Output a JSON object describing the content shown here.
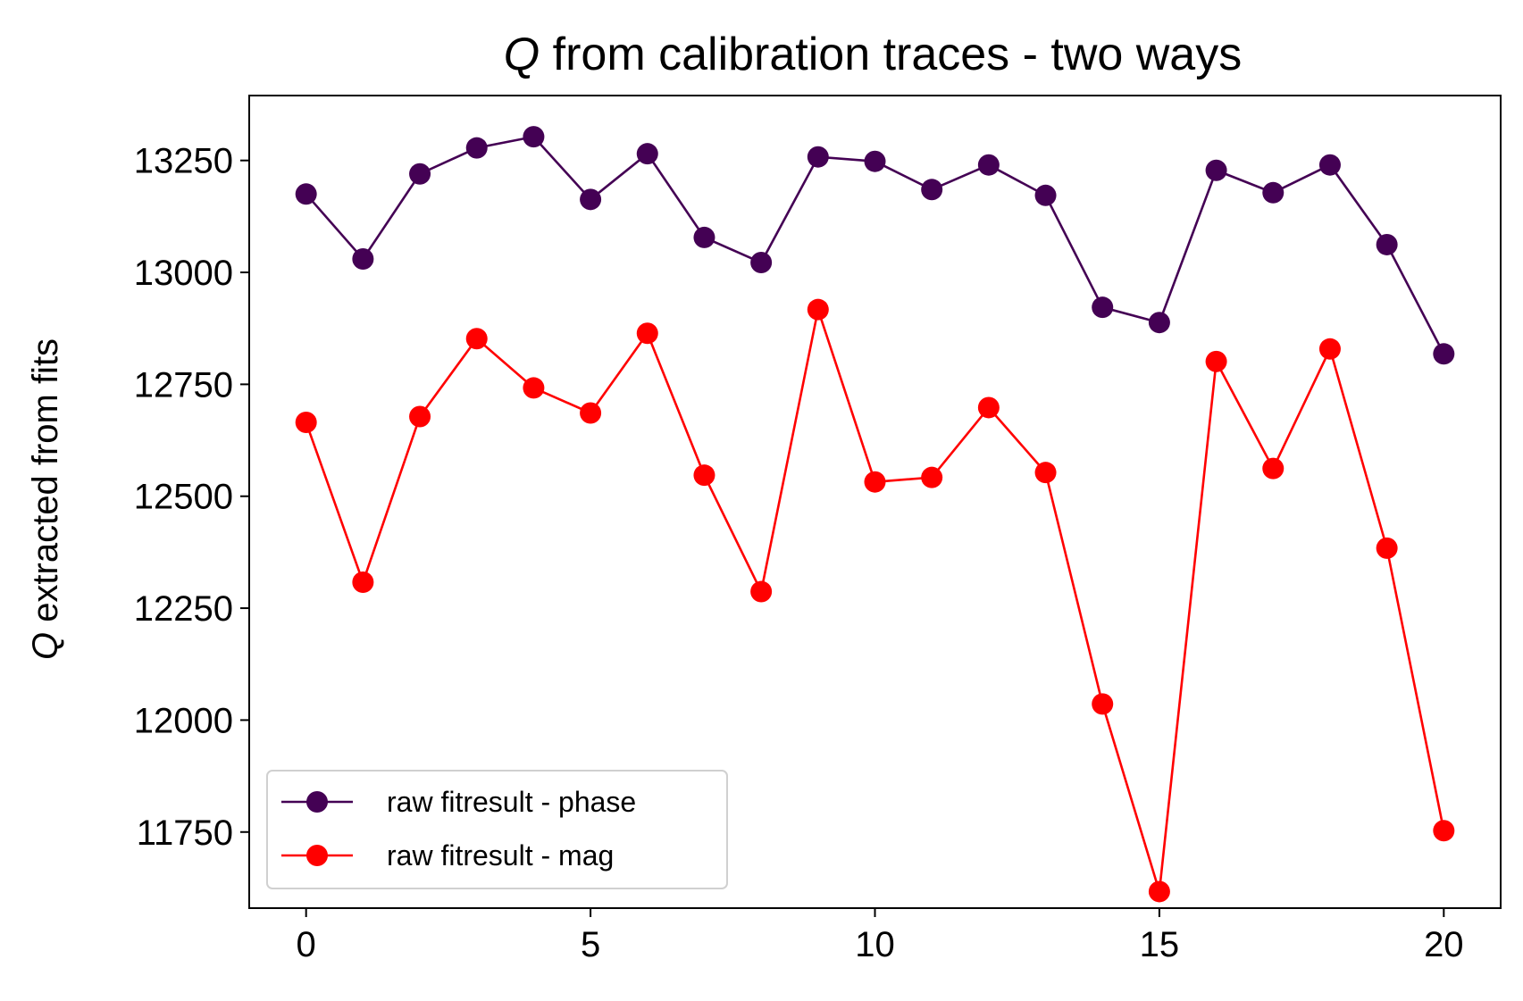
{
  "chart_data": {
    "type": "line",
    "title_italic": "Q",
    "title_rest": " from calibration traces - two ways",
    "ylabel_italic": "Q",
    "ylabel_rest": " extracted from fits",
    "xlabel": "",
    "xlim": [
      -1,
      21
    ],
    "ylim": [
      11580,
      13395
    ],
    "xticks": [
      0,
      5,
      10,
      15,
      20
    ],
    "yticks": [
      11750,
      12000,
      12250,
      12500,
      12750,
      13000,
      13250
    ],
    "grid": false,
    "legend_position": "lower-left",
    "x": [
      0,
      1,
      2,
      3,
      4,
      5,
      6,
      7,
      8,
      9,
      10,
      11,
      12,
      13,
      14,
      15,
      16,
      17,
      18,
      19,
      20
    ],
    "series": [
      {
        "name": "raw fitresult - phase",
        "color": "#440154",
        "values": [
          13175,
          13030,
          13220,
          13278,
          13303,
          13163,
          13265,
          13078,
          13022,
          13258,
          13248,
          13185,
          13240,
          13172,
          12922,
          12888,
          13228,
          13178,
          13240,
          13062,
          12818
        ]
      },
      {
        "name": "raw fitresult - mag",
        "color": "#ff0000",
        "values": [
          12665,
          12308,
          12678,
          12852,
          12742,
          12686,
          12864,
          12547,
          12287,
          12917,
          12532,
          12542,
          12698,
          12553,
          12036,
          11617,
          12801,
          12562,
          12829,
          12384,
          11753
        ]
      }
    ]
  }
}
